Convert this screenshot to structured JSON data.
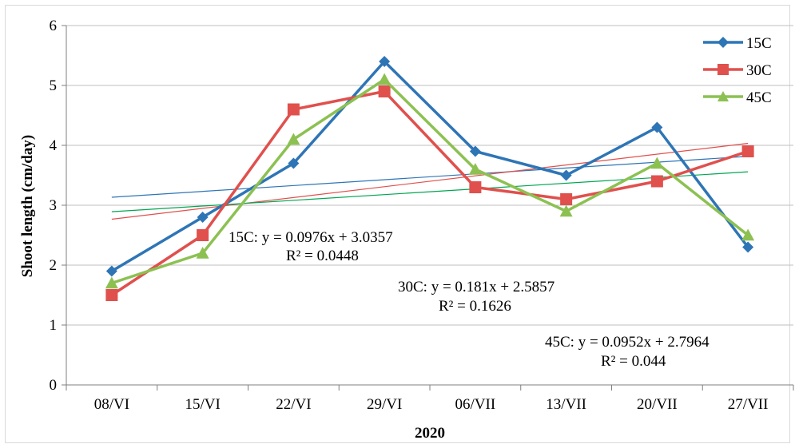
{
  "chart_data": {
    "type": "line",
    "xlabel": "2020",
    "ylabel": "Shoot length (cm/day)",
    "ylim": [
      0,
      6
    ],
    "yticks": [
      "0",
      "1",
      "2",
      "3",
      "4",
      "5",
      "6"
    ],
    "categories": [
      "08/VI",
      "15/VI",
      "22/VI",
      "29/VI",
      "06/VII",
      "13/VII",
      "20/VII",
      "27/VII"
    ],
    "grid": "horizontal",
    "legend_position": "top-right",
    "series": [
      {
        "name": "15C",
        "color": "#2e75b6",
        "marker": "diamond",
        "values": [
          1.9,
          2.8,
          3.7,
          5.4,
          3.9,
          3.5,
          4.3,
          2.3
        ],
        "trend": {
          "slope": 0.0976,
          "intercept": 3.0357,
          "color": "#2e75b6"
        }
      },
      {
        "name": "30C",
        "color": "#e0504d",
        "marker": "square",
        "values": [
          1.5,
          2.5,
          4.6,
          4.9,
          3.3,
          3.1,
          3.4,
          3.9
        ],
        "trend": {
          "slope": 0.181,
          "intercept": 2.5857,
          "color": "#e0504d"
        }
      },
      {
        "name": "45C",
        "color": "#8cc152",
        "marker": "triangle",
        "values": [
          1.7,
          2.2,
          4.1,
          5.1,
          3.6,
          2.9,
          3.7,
          2.5
        ],
        "trend": {
          "slope": 0.0952,
          "intercept": 2.7964,
          "color": "#00a651"
        }
      }
    ],
    "annotations": [
      {
        "eq": "15C:  y = 0.0976x + 3.0357",
        "r2": "R² = 0.0448"
      },
      {
        "eq": "30C: y = 0.181x + 2.5857",
        "r2": "R² = 0.1626"
      },
      {
        "eq": "45C: y = 0.0952x + 2.7964",
        "r2": "R² = 0.044"
      }
    ]
  }
}
